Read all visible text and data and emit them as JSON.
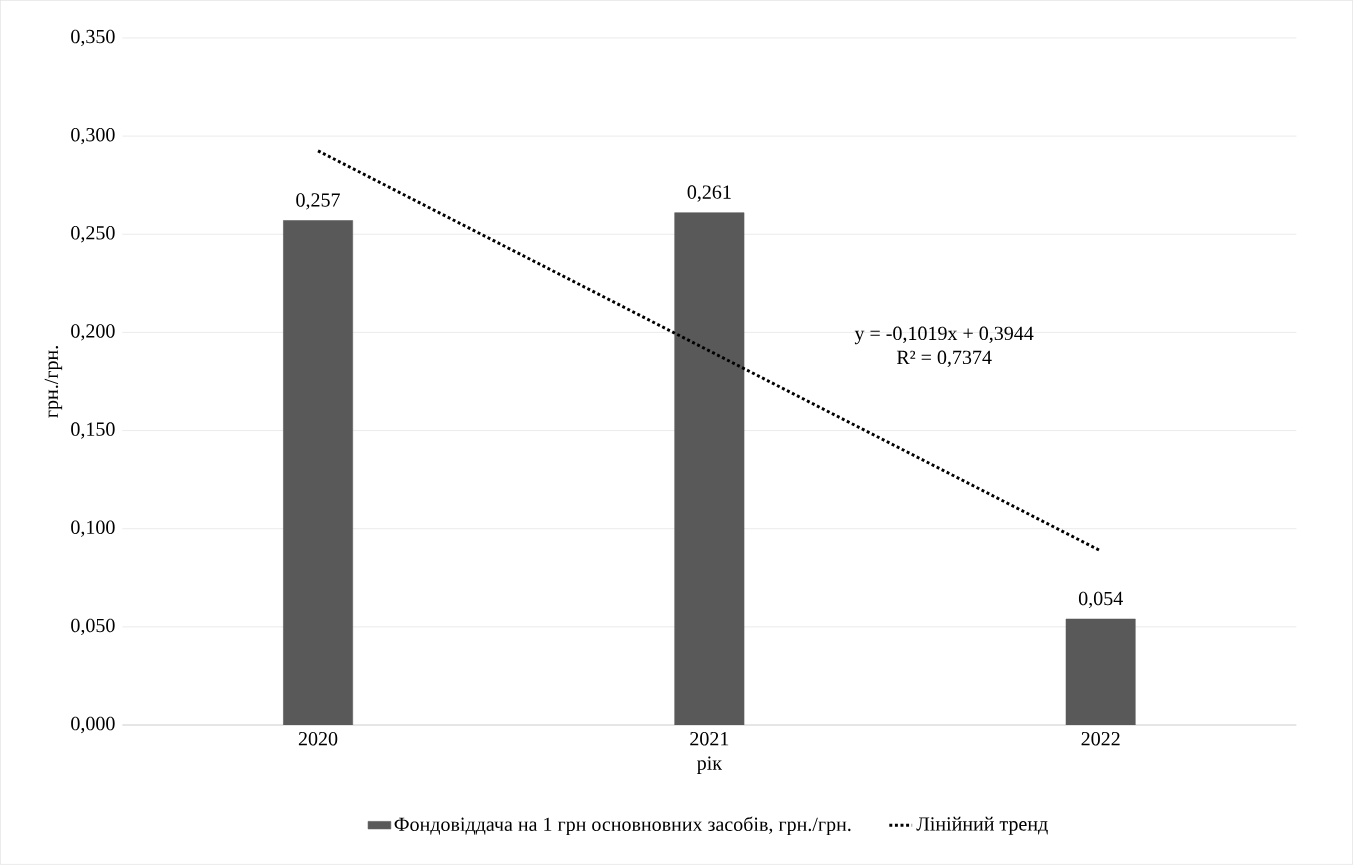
{
  "chart_data": {
    "type": "bar",
    "xlabel": "рік",
    "ylabel": "грн./грн.",
    "categories": [
      "2020",
      "2021",
      "2022"
    ],
    "series": [
      {
        "name": "Фондовіддача на 1 грн основновних засобів, грн./грн.",
        "color": "#595959",
        "values": [
          0.257,
          0.261,
          0.054
        ],
        "value_labels": [
          "0,257",
          "0,261",
          "0,054"
        ]
      },
      {
        "name": "Лінійний тренд",
        "type": "line",
        "color": "#000000",
        "line_style": "dotted",
        "values": [
          0.2925,
          0.1906,
          0.0887
        ]
      }
    ],
    "annotations": [
      "y = -0,1019x + 0,3944",
      "R² = 0,7374"
    ],
    "ylim": [
      0,
      0.35
    ],
    "yticks": [
      {
        "value": 0,
        "label": "0,000"
      },
      {
        "value": 0.05,
        "label": "0,050"
      },
      {
        "value": 0.1,
        "label": "0,100"
      },
      {
        "value": 0.15,
        "label": "0,150"
      },
      {
        "value": 0.2,
        "label": "0,200"
      },
      {
        "value": 0.25,
        "label": "0,250"
      },
      {
        "value": 0.3,
        "label": "0,300"
      },
      {
        "value": 0.35,
        "label": "0,350"
      }
    ],
    "grid": "y",
    "legend": "bottom",
    "marker": "none"
  }
}
